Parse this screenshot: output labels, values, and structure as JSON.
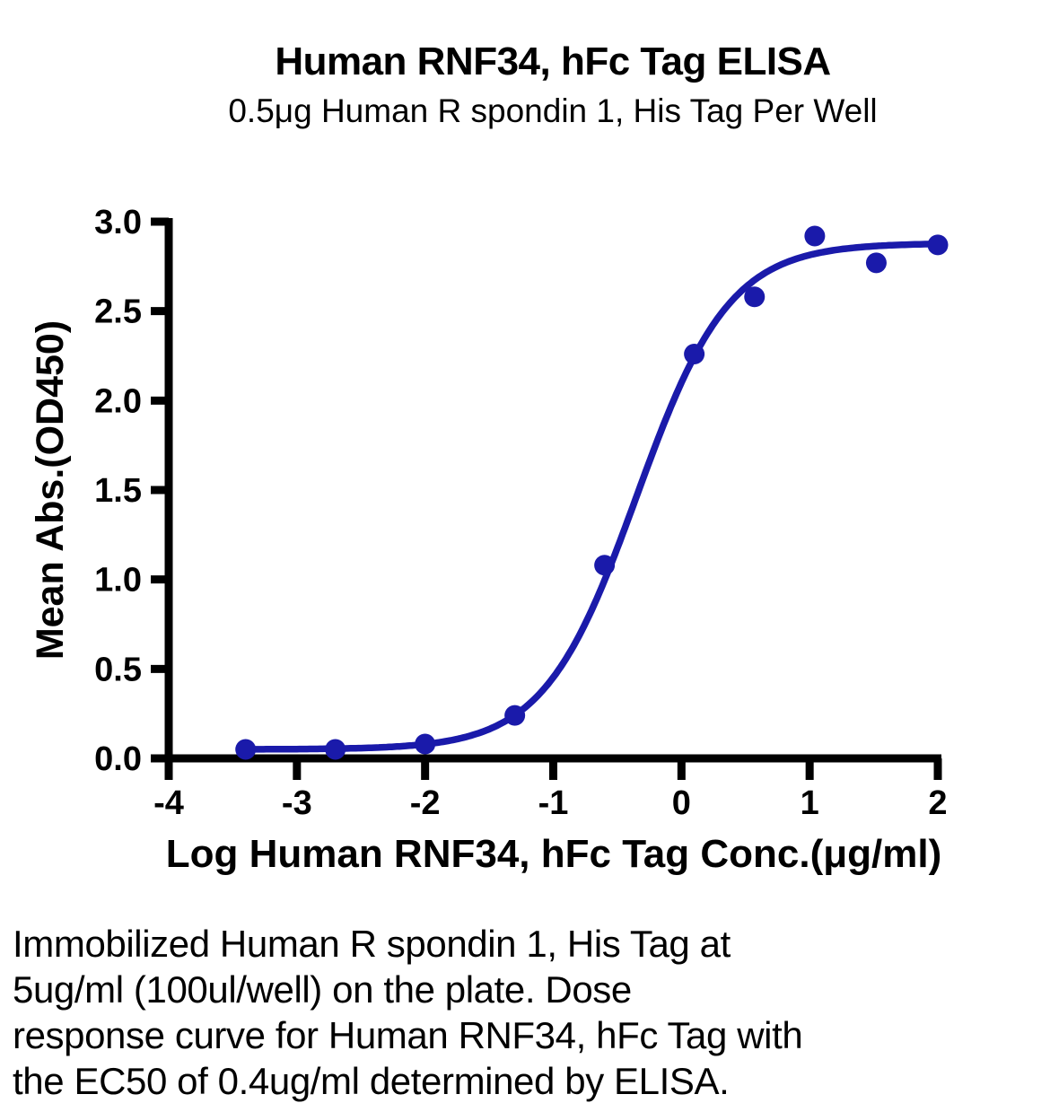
{
  "title": "Human RNF34, hFc Tag ELISA",
  "subtitle": "0.5μg Human R spondin 1, His Tag Per Well",
  "caption_lines": [
    "Immobilized Human R spondin 1, His Tag at",
    "5ug/ml (100ul/well) on the plate. Dose",
    "response curve for Human RNF34, hFc Tag with",
    "the EC50 of 0.4ug/ml determined by ELISA."
  ],
  "colors": {
    "curve": "#1a1aaa",
    "point": "#1a1aaa",
    "axis": "#000000",
    "text": "#000000"
  },
  "chart_data": {
    "type": "scatter",
    "title": "Human RNF34, hFc Tag ELISA",
    "subtitle": "0.5μg Human R spondin 1, His Tag Per Well",
    "xlabel": "Log Human RNF34, hFc Tag Conc.(μg/ml)",
    "ylabel": "Mean Abs.(OD450)",
    "xlim": [
      -4,
      2
    ],
    "ylim": [
      0,
      3
    ],
    "grid": false,
    "legend": "none",
    "x_ticks": [
      -4,
      -3,
      -2,
      -1,
      0,
      1,
      2
    ],
    "x_tick_labels": [
      "-4",
      "-3",
      "-2",
      "-1",
      "0",
      "1",
      "2"
    ],
    "y_ticks": [
      0,
      0.5,
      1,
      1.5,
      2,
      2.5,
      3
    ],
    "y_tick_labels": [
      "0.0",
      "0.5",
      "1.0",
      "1.5",
      "2.0",
      "2.5",
      "3.0"
    ],
    "x": [
      -3.4,
      -2.7,
      -2.0,
      -1.3,
      -0.6,
      0.1,
      0.57,
      1.04,
      1.52,
      2.0
    ],
    "y": [
      0.05,
      0.05,
      0.08,
      0.24,
      1.08,
      2.26,
      2.58,
      2.92,
      2.77,
      2.87
    ],
    "fit_curve": {
      "model": "4PL",
      "bottom": 0.05,
      "top": 2.88,
      "log_ec50": -0.35,
      "hill_slope": 1.2,
      "x_range": [
        -3.4,
        2.0
      ]
    }
  }
}
